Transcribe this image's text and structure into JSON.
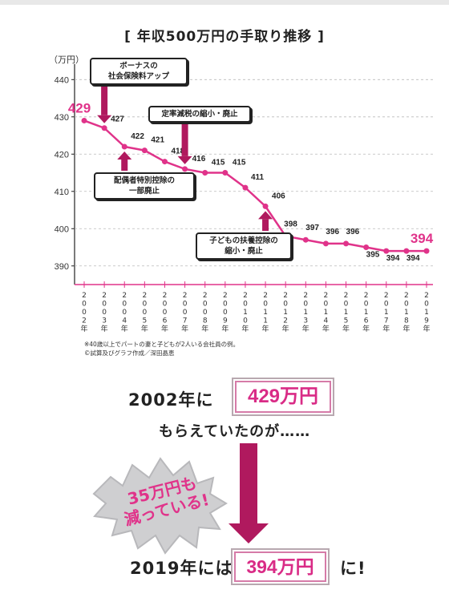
{
  "title": "[ 年収500万円の手取り推移 ]",
  "chart_data": {
    "type": "line",
    "unit_label": "（万円）",
    "x": [
      "2002年",
      "2003年",
      "2004年",
      "2005年",
      "2006年",
      "2007年",
      "2008年",
      "2009年",
      "2010年",
      "2011年",
      "2012年",
      "2013年",
      "2014年",
      "2015年",
      "2016年",
      "2017年",
      "2018年",
      "2019年"
    ],
    "values": [
      429,
      427,
      422,
      421,
      418,
      416,
      415,
      415,
      411,
      406,
      398,
      397,
      396,
      396,
      395,
      394,
      394,
      394
    ],
    "yticks": [
      390,
      400,
      410,
      420,
      430,
      440
    ],
    "ylim": [
      385,
      442
    ],
    "color": "#e0338a",
    "annotations": [
      {
        "text_lines": [
          "ボーナスの",
          "社会保険料アップ"
        ],
        "target_index": 1,
        "arrow": "down"
      },
      {
        "text_lines": [
          "定率減税の縮小・廃止"
        ],
        "target_index": 5,
        "arrow": "down"
      },
      {
        "text_lines": [
          "配偶者特別控除の",
          "一部廃止"
        ],
        "target_index": 2,
        "arrow": "up"
      },
      {
        "text_lines": [
          "子どもの扶養控除の",
          "縮小・廃止"
        ],
        "target_index": 9,
        "arrow": "up"
      }
    ]
  },
  "notes": [
    "※40歳以上でパートの妻と子どもが2人いる会社員の例。",
    "©試算及びグラフ作成／深田晶恵"
  ],
  "summary": {
    "line1_prefix": "2002年に",
    "amount1": "429万円",
    "line2": "もらえていたのが……",
    "burst": [
      "35万円も",
      "減っている!"
    ],
    "line3_prefix": "2019年には",
    "amount2": "394万円",
    "line3_suffix": "に!"
  },
  "colors": {
    "accent": "#e0338a",
    "arrow": "#b0195e",
    "box_fill": "#f3c7d8"
  }
}
